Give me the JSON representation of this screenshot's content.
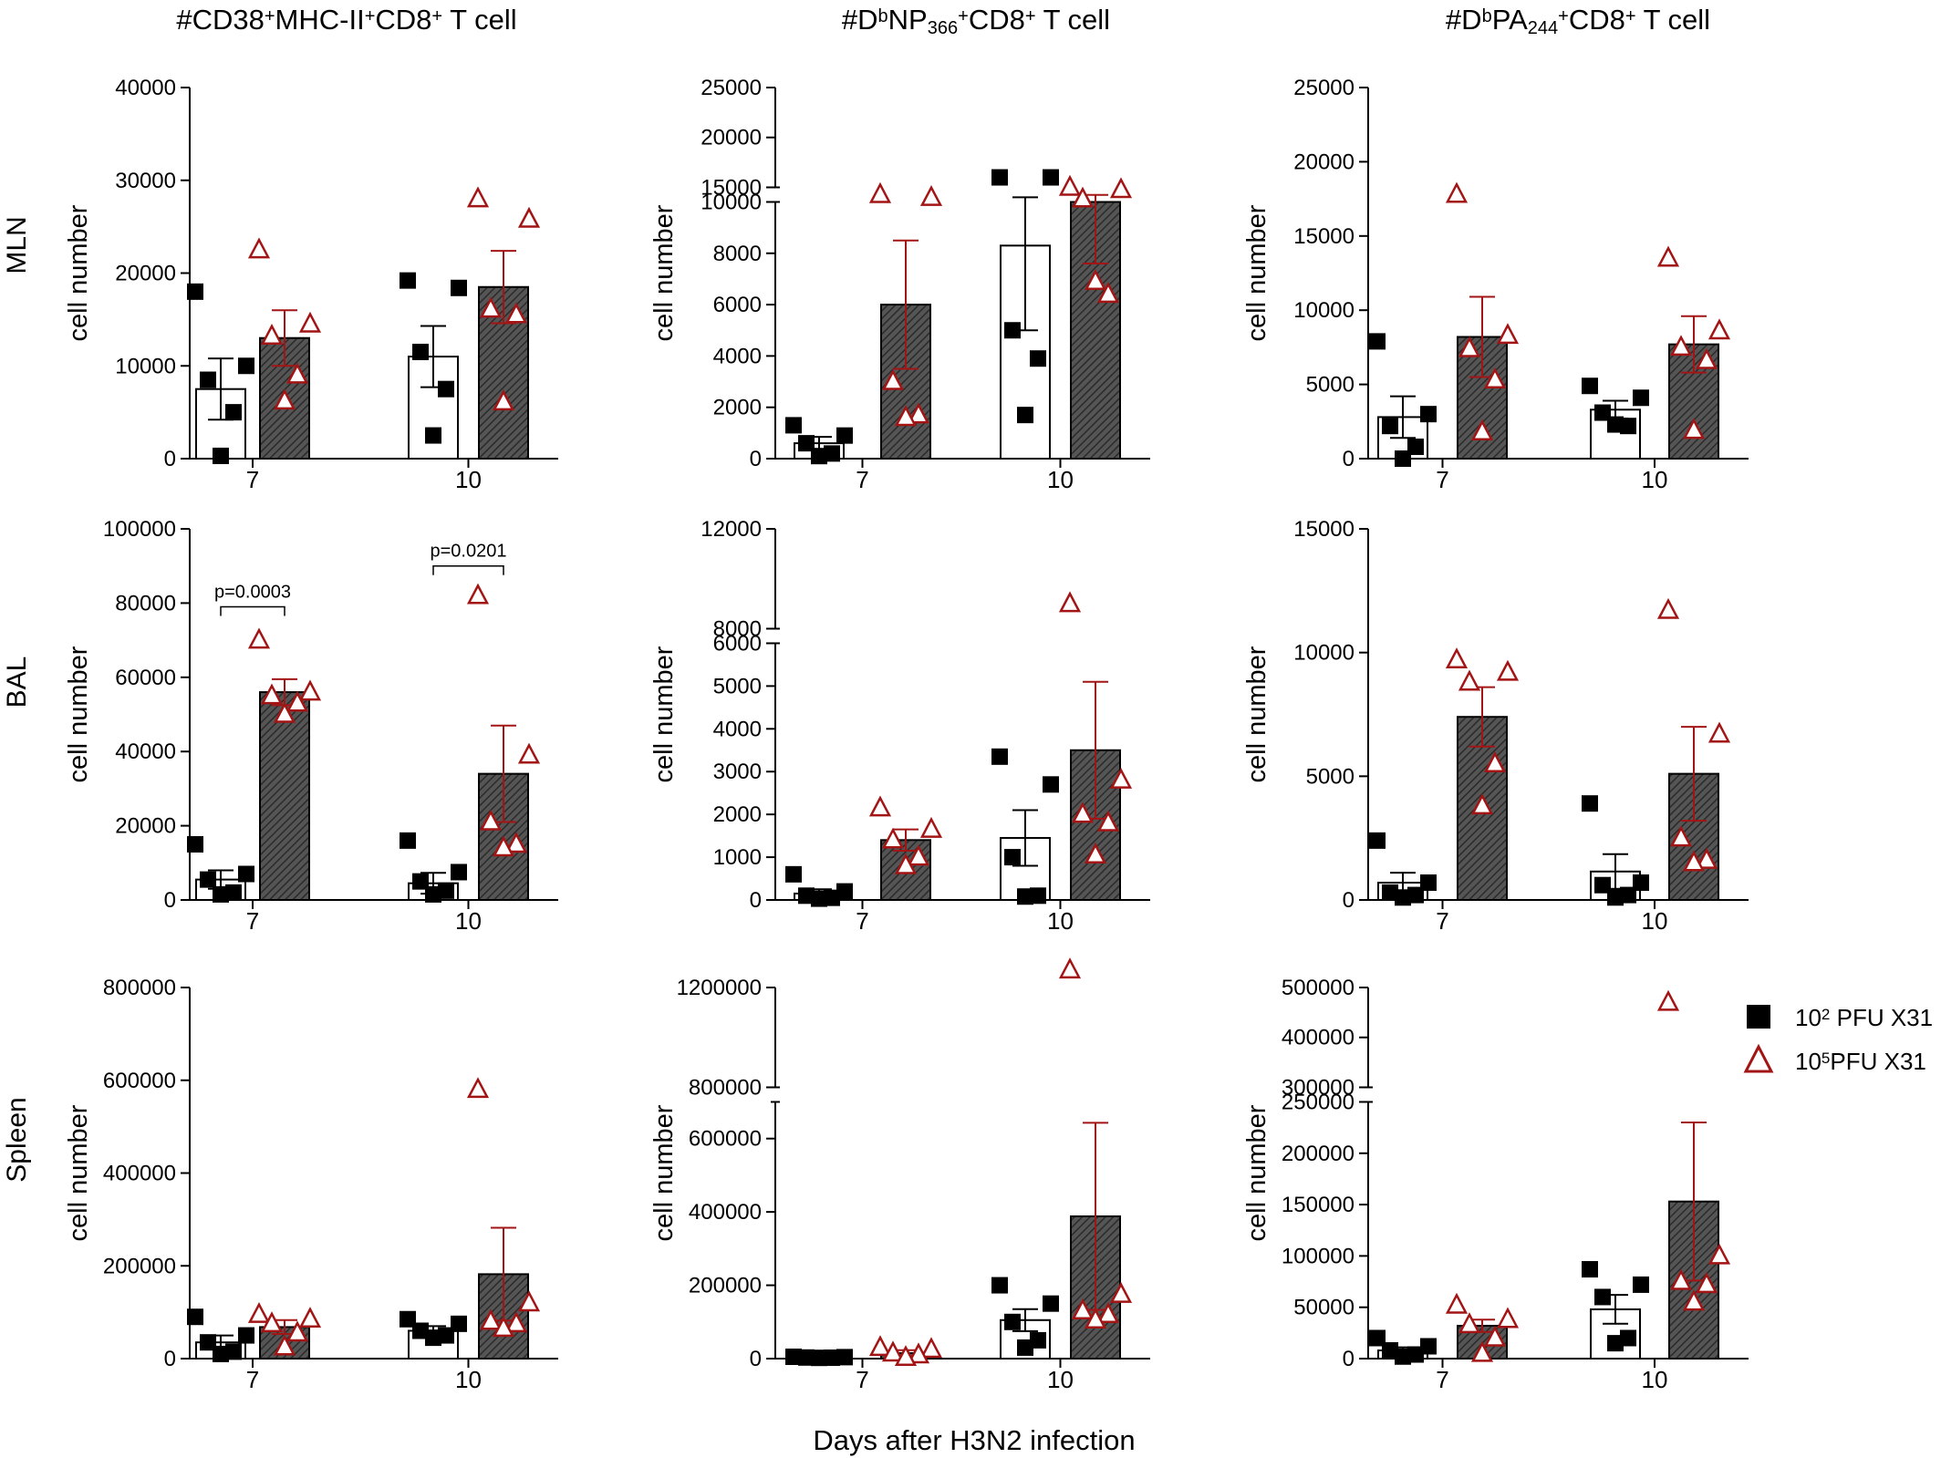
{
  "figure": {
    "xlabel": "Days after H3N2 infection",
    "column_titles": [
      [
        {
          "t": "#CD38",
          "s": ""
        },
        {
          "t": "+",
          "s": "sup"
        },
        {
          "t": "MHC-II",
          "s": ""
        },
        {
          "t": "+",
          "s": "sup"
        },
        {
          "t": "CD8",
          "s": ""
        },
        {
          "t": "+",
          "s": "sup"
        },
        {
          "t": " T cell",
          "s": ""
        }
      ],
      [
        {
          "t": "#D",
          "s": ""
        },
        {
          "t": "b",
          "s": "sup"
        },
        {
          "t": "NP",
          "s": ""
        },
        {
          "t": "366",
          "s": "sub"
        },
        {
          "t": "+",
          "s": "sup"
        },
        {
          "t": "CD8",
          "s": ""
        },
        {
          "t": "+",
          "s": "sup"
        },
        {
          "t": " T cell",
          "s": ""
        }
      ],
      [
        {
          "t": "#D",
          "s": ""
        },
        {
          "t": "b",
          "s": "sup"
        },
        {
          "t": "PA",
          "s": ""
        },
        {
          "t": "244",
          "s": "sub"
        },
        {
          "t": "+",
          "s": "sup"
        },
        {
          "t": "CD8",
          "s": ""
        },
        {
          "t": "+",
          "s": "sup"
        },
        {
          "t": " T cell",
          "s": ""
        }
      ]
    ],
    "row_labels": [
      "MLN",
      "BAL",
      "Spleen"
    ],
    "legend": [
      {
        "main": "10",
        "sup": "2",
        "rest": " PFU X31",
        "marker": "square",
        "color": "#000000"
      },
      {
        "main": "10",
        "sup": "5",
        "rest": "PFU X31",
        "marker": "triangle",
        "color": "#a31515"
      }
    ],
    "colors": {
      "low_dose": "#000000",
      "high_dose": "#a31515",
      "bar_hatch": "#444444",
      "axis": "#000000"
    }
  },
  "chart_data": [
    {
      "type": "bar",
      "row": "MLN",
      "column": 1,
      "ylabel": "cell number",
      "ylim": [
        0,
        40000
      ],
      "yticks": [
        0,
        10000,
        20000,
        30000,
        40000
      ],
      "categories": [
        "7",
        "10"
      ],
      "series": [
        {
          "name": "10^2 PFU X31",
          "means": [
            7500,
            11000
          ],
          "sem": [
            3300,
            3300
          ],
          "points": [
            [
              18000,
              10000,
              8500,
              5000,
              300
            ],
            [
              19200,
              18400,
              11500,
              7500,
              2500
            ]
          ]
        },
        {
          "name": "10^5PFU X31",
          "means": [
            13000,
            18500
          ],
          "sem": [
            3000,
            3900
          ],
          "points": [
            [
              22500,
              14500,
              13200,
              9000,
              6200
            ],
            [
              28000,
              25800,
              16100,
              15500,
              6100
            ]
          ]
        }
      ]
    },
    {
      "type": "bar",
      "row": "MLN",
      "column": 2,
      "ylabel": "cell number",
      "ylim": [
        0,
        25000
      ],
      "yticks": [
        0,
        2000,
        4000,
        6000,
        8000,
        10000,
        15000,
        20000,
        25000
      ],
      "axis_break": [
        10000,
        15000
      ],
      "categories": [
        "7",
        "10"
      ],
      "series": [
        {
          "name": "10^2 PFU X31",
          "means": [
            600,
            8300
          ],
          "sem": [
            250,
            3300
          ],
          "points": [
            [
              1300,
              900,
              600,
              200,
              100
            ],
            [
              16000,
              16000,
              5000,
              3900,
              1700
            ]
          ]
        },
        {
          "name": "10^5PFU X31",
          "means": [
            6000,
            10000
          ],
          "sem": [
            2500,
            2400
          ],
          "points": [
            [
              12500,
              11500,
              3000,
              1700,
              1600
            ],
            [
              15000,
              14200,
              11000,
              6400,
              6900
            ]
          ]
        }
      ]
    },
    {
      "type": "bar",
      "row": "MLN",
      "column": 3,
      "ylabel": "cell number",
      "ylim": [
        0,
        25000
      ],
      "yticks": [
        0,
        5000,
        10000,
        15000,
        20000,
        25000
      ],
      "categories": [
        "7",
        "10"
      ],
      "series": [
        {
          "name": "10^2 PFU X31",
          "means": [
            2800,
            3300
          ],
          "sem": [
            1400,
            600
          ],
          "points": [
            [
              7900,
              3000,
              2200,
              800,
              0
            ],
            [
              4900,
              4100,
              3100,
              2200,
              2300
            ]
          ]
        },
        {
          "name": "10^5PFU X31",
          "means": [
            8200,
            7700
          ],
          "sem": [
            2700,
            1900
          ],
          "points": [
            [
              17800,
              8300,
              7400,
              5300,
              1800
            ],
            [
              13500,
              8600,
              7500,
              6600,
              1900
            ]
          ]
        }
      ]
    },
    {
      "type": "bar",
      "row": "BAL",
      "column": 1,
      "ylabel": "cell number",
      "ylim": [
        0,
        100000
      ],
      "yticks": [
        0,
        20000,
        40000,
        60000,
        80000,
        100000
      ],
      "categories": [
        "7",
        "10"
      ],
      "series": [
        {
          "name": "10^2 PFU X31",
          "means": [
            5500,
            4500
          ],
          "sem": [
            2500,
            2800
          ],
          "points": [
            [
              15000,
              7000,
              5500,
              2000,
              1500
            ],
            [
              16000,
              7500,
              5000,
              2500,
              1500
            ]
          ]
        },
        {
          "name": "10^5PFU X31",
          "means": [
            56000,
            34000
          ],
          "sem": [
            3500,
            13000
          ],
          "points": [
            [
              70000,
              56000,
              55000,
              53000,
              50000
            ],
            [
              82000,
              39000,
              21000,
              15000,
              14000
            ]
          ]
        }
      ],
      "annotations": [
        {
          "text": "p=0.0003",
          "group": "7",
          "y": 79000
        },
        {
          "text": "p=0.0201",
          "group": "10",
          "y": 90000
        }
      ]
    },
    {
      "type": "bar",
      "row": "BAL",
      "column": 2,
      "ylabel": "cell number",
      "ylim": [
        0,
        12000
      ],
      "yticks": [
        0,
        1000,
        2000,
        3000,
        4000,
        5000,
        6000,
        8000,
        12000
      ],
      "axis_break": [
        6000,
        8000
      ],
      "categories": [
        "7",
        "10"
      ],
      "series": [
        {
          "name": "10^2 PFU X31",
          "means": [
            150,
            1450
          ],
          "sem": [
            100,
            650
          ],
          "points": [
            [
              600,
              200,
              100,
              50,
              30
            ],
            [
              3350,
              2700,
              1000,
              100,
              80
            ]
          ]
        },
        {
          "name": "10^5PFU X31",
          "means": [
            1400,
            3500
          ],
          "sem": [
            250,
            1600
          ],
          "points": [
            [
              2150,
              1650,
              1400,
              1000,
              800
            ],
            [
              9000,
              2800,
              2000,
              1800,
              1050
            ]
          ]
        }
      ]
    },
    {
      "type": "bar",
      "row": "BAL",
      "column": 3,
      "ylabel": "cell number",
      "ylim": [
        0,
        15000
      ],
      "yticks": [
        0,
        5000,
        10000,
        15000
      ],
      "categories": [
        "7",
        "10"
      ],
      "series": [
        {
          "name": "10^2 PFU X31",
          "means": [
            700,
            1150
          ],
          "sem": [
            400,
            700
          ],
          "points": [
            [
              2400,
              700,
              300,
              200,
              100
            ],
            [
              3900,
              700,
              600,
              200,
              100
            ]
          ]
        },
        {
          "name": "10^5PFU X31",
          "means": [
            7400,
            5100
          ],
          "sem": [
            1200,
            1900
          ],
          "points": [
            [
              9700,
              9200,
              8800,
              5500,
              3800
            ],
            [
              11700,
              6700,
              2500,
              1600,
              1500
            ]
          ]
        }
      ]
    },
    {
      "type": "bar",
      "row": "Spleen",
      "column": 1,
      "ylabel": "cell number",
      "ylim": [
        0,
        800000
      ],
      "yticks": [
        0,
        200000,
        400000,
        600000,
        800000
      ],
      "categories": [
        "7",
        "10"
      ],
      "series": [
        {
          "name": "10^2 PFU X31",
          "means": [
            35000,
            60000
          ],
          "sem": [
            15000,
            10000
          ],
          "points": [
            [
              90000,
              50000,
              35000,
              15000,
              10000
            ],
            [
              85000,
              75000,
              60000,
              50000,
              45000
            ]
          ]
        },
        {
          "name": "10^5PFU X31",
          "means": [
            68000,
            182000
          ],
          "sem": [
            15000,
            100000
          ],
          "points": [
            [
              95000,
              85000,
              75000,
              55000,
              25000
            ],
            [
              580000,
              120000,
              80000,
              75000,
              65000
            ]
          ]
        }
      ]
    },
    {
      "type": "bar",
      "row": "Spleen",
      "column": 2,
      "ylabel": "cell number",
      "ylim": [
        0,
        1200000
      ],
      "yticks": [
        0,
        200000,
        400000,
        600000,
        800000,
        1200000
      ],
      "axis_break": [
        700000,
        800000
      ],
      "categories": [
        "7",
        "10"
      ],
      "series": [
        {
          "name": "10^2 PFU X31",
          "means": [
            3000,
            105000
          ],
          "sem": [
            1000,
            30000
          ],
          "points": [
            [
              5000,
              4000,
              3000,
              2500,
              2000
            ],
            [
              200000,
              150000,
              100000,
              50000,
              30000
            ]
          ]
        },
        {
          "name": "10^5PFU X31",
          "means": [
            15000,
            388000
          ],
          "sem": [
            8000,
            255000
          ],
          "points": [
            [
              30000,
              25000,
              15000,
              10000,
              3000
            ],
            [
              1270000,
              175000,
              130000,
              120000,
              105000
            ]
          ]
        }
      ]
    },
    {
      "type": "bar",
      "row": "Spleen",
      "column": 3,
      "ylabel": "cell number",
      "ylim": [
        0,
        500000
      ],
      "yticks": [
        0,
        50000,
        100000,
        150000,
        200000,
        250000,
        300000,
        400000,
        500000
      ],
      "axis_break": [
        250000,
        300000
      ],
      "categories": [
        "7",
        "10"
      ],
      "series": [
        {
          "name": "10^2 PFU X31",
          "means": [
            8000,
            48000
          ],
          "sem": [
            3000,
            14000
          ],
          "points": [
            [
              20000,
              12000,
              8000,
              4000,
              2000
            ],
            [
              87000,
              72000,
              60000,
              20000,
              15000
            ]
          ]
        },
        {
          "name": "10^5PFU X31",
          "means": [
            32000,
            153000
          ],
          "sem": [
            6000,
            77000
          ],
          "points": [
            [
              52000,
              38000,
              33000,
              20000,
              5000
            ],
            [
              470000,
              100000,
              75000,
              72000,
              55000
            ]
          ]
        }
      ]
    }
  ]
}
